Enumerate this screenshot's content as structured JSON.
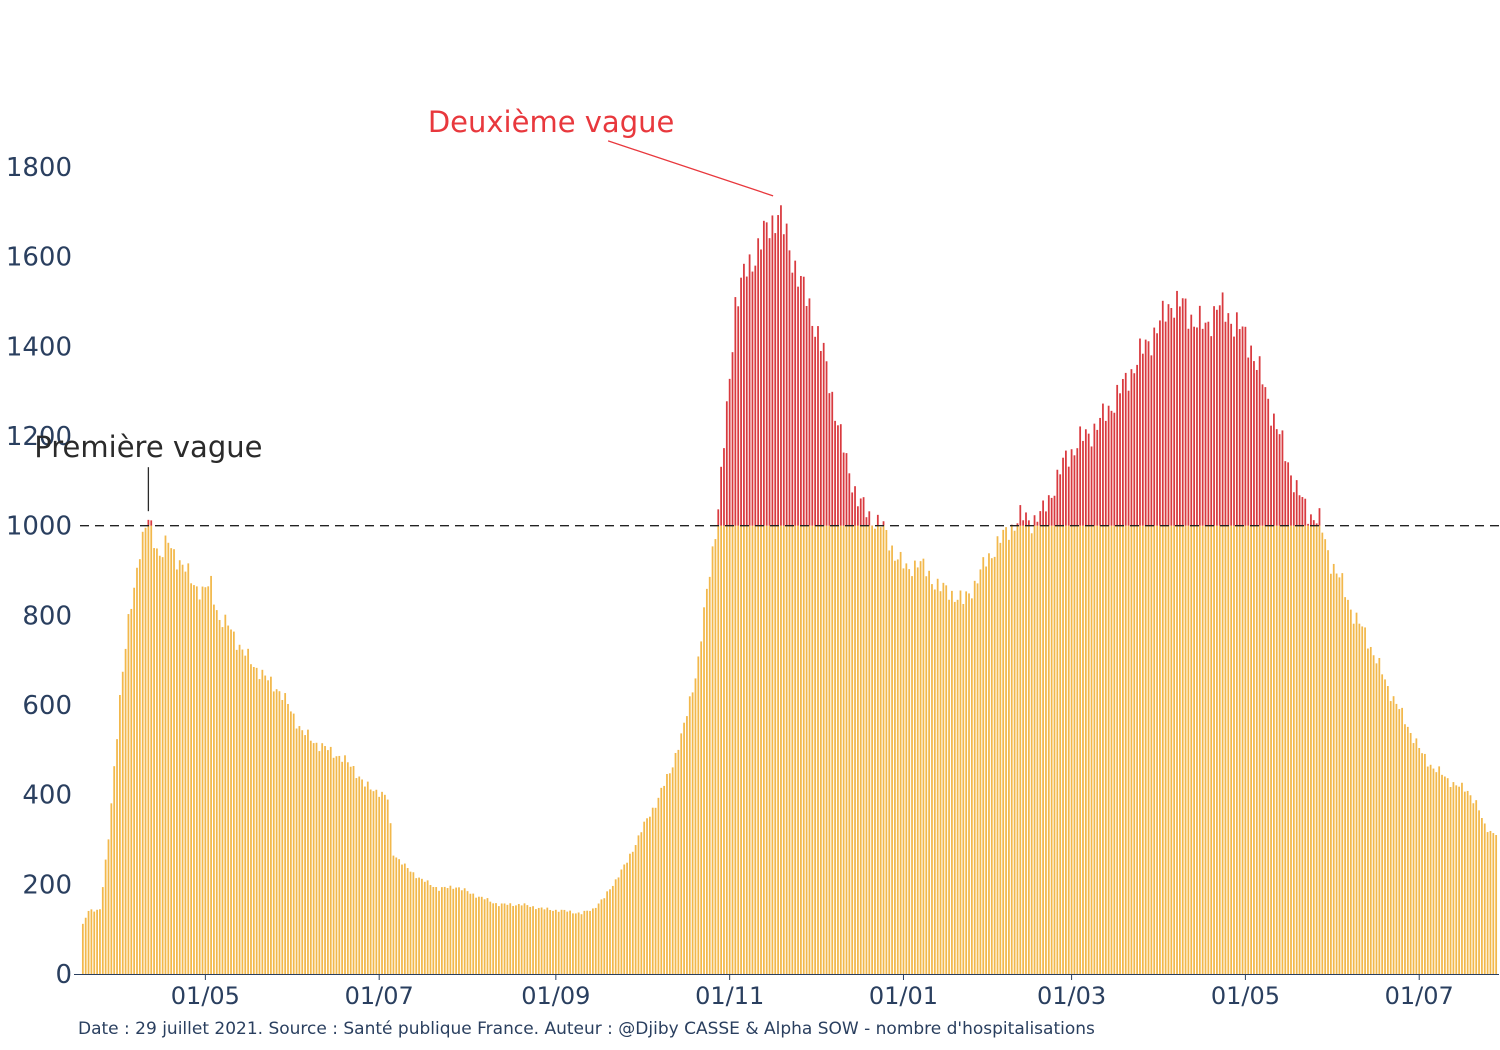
{
  "chart_data": {
    "type": "bar",
    "y_ticks": [
      "0",
      "200",
      "400",
      "600",
      "800",
      "1000",
      "1200",
      "1400",
      "1600",
      "1800"
    ],
    "ylim": [
      0,
      1800
    ],
    "x_ticks": [
      {
        "label": "01/05",
        "date": "2020-05-01"
      },
      {
        "label": "01/07",
        "date": "2020-07-01"
      },
      {
        "label": "01/09",
        "date": "2020-09-01"
      },
      {
        "label": "01/11",
        "date": "2020-11-01"
      },
      {
        "label": "01/01",
        "date": "2021-01-01"
      },
      {
        "label": "01/03",
        "date": "2021-03-01"
      },
      {
        "label": "01/05",
        "date": "2021-05-01"
      },
      {
        "label": "01/07",
        "date": "2021-07-01"
      }
    ],
    "x_range": [
      "2020-03-18",
      "2021-07-29"
    ],
    "threshold": 1000,
    "colors": {
      "below": "#f2b84b",
      "above": "#d93a3f",
      "axis": "#2a3f5f",
      "threshold": "#222222"
    },
    "series_points": [
      [
        "2020-03-19",
        110
      ],
      [
        "2020-03-21",
        140
      ],
      [
        "2020-03-25",
        145
      ],
      [
        "2020-03-28",
        300
      ],
      [
        "2020-04-01",
        620
      ],
      [
        "2020-04-04",
        780
      ],
      [
        "2020-04-08",
        950
      ],
      [
        "2020-04-11",
        1010
      ],
      [
        "2020-04-15",
        935
      ],
      [
        "2020-04-18",
        960
      ],
      [
        "2020-04-22",
        920
      ],
      [
        "2020-04-26",
        880
      ],
      [
        "2020-04-30",
        850
      ],
      [
        "2020-05-03",
        870
      ],
      [
        "2020-05-06",
        790
      ],
      [
        "2020-05-10",
        770
      ],
      [
        "2020-05-14",
        720
      ],
      [
        "2020-05-18",
        690
      ],
      [
        "2020-05-22",
        660
      ],
      [
        "2020-05-26",
        640
      ],
      [
        "2020-05-30",
        600
      ],
      [
        "2020-06-04",
        540
      ],
      [
        "2020-06-10",
        510
      ],
      [
        "2020-06-16",
        490
      ],
      [
        "2020-06-22",
        460
      ],
      [
        "2020-06-26",
        420
      ],
      [
        "2020-06-30",
        410
      ],
      [
        "2020-07-04",
        390
      ],
      [
        "2020-07-06",
        270
      ],
      [
        "2020-07-10",
        240
      ],
      [
        "2020-07-16",
        210
      ],
      [
        "2020-07-22",
        190
      ],
      [
        "2020-07-28",
        195
      ],
      [
        "2020-08-04",
        175
      ],
      [
        "2020-08-12",
        155
      ],
      [
        "2020-08-20",
        155
      ],
      [
        "2020-08-28",
        145
      ],
      [
        "2020-09-05",
        140
      ],
      [
        "2020-09-10",
        135
      ],
      [
        "2020-09-14",
        145
      ],
      [
        "2020-09-18",
        170
      ],
      [
        "2020-09-22",
        210
      ],
      [
        "2020-09-26",
        250
      ],
      [
        "2020-10-01",
        320
      ],
      [
        "2020-10-06",
        380
      ],
      [
        "2020-10-11",
        450
      ],
      [
        "2020-10-16",
        550
      ],
      [
        "2020-10-21",
        700
      ],
      [
        "2020-10-25",
        900
      ],
      [
        "2020-10-28",
        1040
      ],
      [
        "2020-10-31",
        1250
      ],
      [
        "2020-11-03",
        1500
      ],
      [
        "2020-11-07",
        1570
      ],
      [
        "2020-11-11",
        1620
      ],
      [
        "2020-11-15",
        1670
      ],
      [
        "2020-11-18",
        1700
      ],
      [
        "2020-11-22",
        1620
      ],
      [
        "2020-11-26",
        1540
      ],
      [
        "2020-11-30",
        1470
      ],
      [
        "2020-12-04",
        1380
      ],
      [
        "2020-12-08",
        1260
      ],
      [
        "2020-12-12",
        1140
      ],
      [
        "2020-12-16",
        1060
      ],
      [
        "2020-12-20",
        1020
      ],
      [
        "2020-12-24",
        1005
      ],
      [
        "2020-12-28",
        950
      ],
      [
        "2021-01-02",
        900
      ],
      [
        "2021-01-06",
        920
      ],
      [
        "2021-01-10",
        890
      ],
      [
        "2021-01-14",
        860
      ],
      [
        "2021-01-18",
        850
      ],
      [
        "2021-01-22",
        830
      ],
      [
        "2021-01-26",
        870
      ],
      [
        "2021-01-30",
        920
      ],
      [
        "2021-02-03",
        960
      ],
      [
        "2021-02-07",
        990
      ],
      [
        "2021-02-11",
        1020
      ],
      [
        "2021-02-15",
        1010
      ],
      [
        "2021-02-19",
        1030
      ],
      [
        "2021-02-23",
        1090
      ],
      [
        "2021-02-27",
        1150
      ],
      [
        "2021-03-04",
        1190
      ],
      [
        "2021-03-08",
        1210
      ],
      [
        "2021-03-12",
        1240
      ],
      [
        "2021-03-16",
        1280
      ],
      [
        "2021-03-20",
        1320
      ],
      [
        "2021-03-24",
        1370
      ],
      [
        "2021-03-28",
        1410
      ],
      [
        "2021-04-01",
        1450
      ],
      [
        "2021-04-05",
        1500
      ],
      [
        "2021-04-09",
        1490
      ],
      [
        "2021-04-13",
        1460
      ],
      [
        "2021-04-17",
        1440
      ],
      [
        "2021-04-21",
        1490
      ],
      [
        "2021-04-25",
        1470
      ],
      [
        "2021-04-29",
        1440
      ],
      [
        "2021-05-03",
        1400
      ],
      [
        "2021-05-07",
        1320
      ],
      [
        "2021-05-11",
        1240
      ],
      [
        "2021-05-15",
        1160
      ],
      [
        "2021-05-19",
        1080
      ],
      [
        "2021-05-23",
        1030
      ],
      [
        "2021-05-27",
        1010
      ],
      [
        "2021-05-31",
        920
      ],
      [
        "2021-06-04",
        870
      ],
      [
        "2021-06-08",
        800
      ],
      [
        "2021-06-12",
        760
      ],
      [
        "2021-06-16",
        700
      ],
      [
        "2021-06-20",
        640
      ],
      [
        "2021-06-24",
        590
      ],
      [
        "2021-06-28",
        540
      ],
      [
        "2021-07-02",
        490
      ],
      [
        "2021-07-06",
        460
      ],
      [
        "2021-07-10",
        440
      ],
      [
        "2021-07-14",
        420
      ],
      [
        "2021-07-18",
        410
      ],
      [
        "2021-07-21",
        380
      ],
      [
        "2021-07-24",
        330
      ],
      [
        "2021-07-28",
        310
      ]
    ],
    "annotations": [
      {
        "text": "Première vague",
        "date": "2020-04-11",
        "value": 1010,
        "color": "#2a2a2a"
      },
      {
        "text": "Deuxième vague",
        "date": "2020-11-18",
        "value": 1700,
        "color": "#e8383d"
      }
    ]
  },
  "caption": "Date : 29 juillet 2021. Source : Santé publique France. Auteur : @Djiby CASSE & Alpha SOW - nombre d'hospitalisations"
}
